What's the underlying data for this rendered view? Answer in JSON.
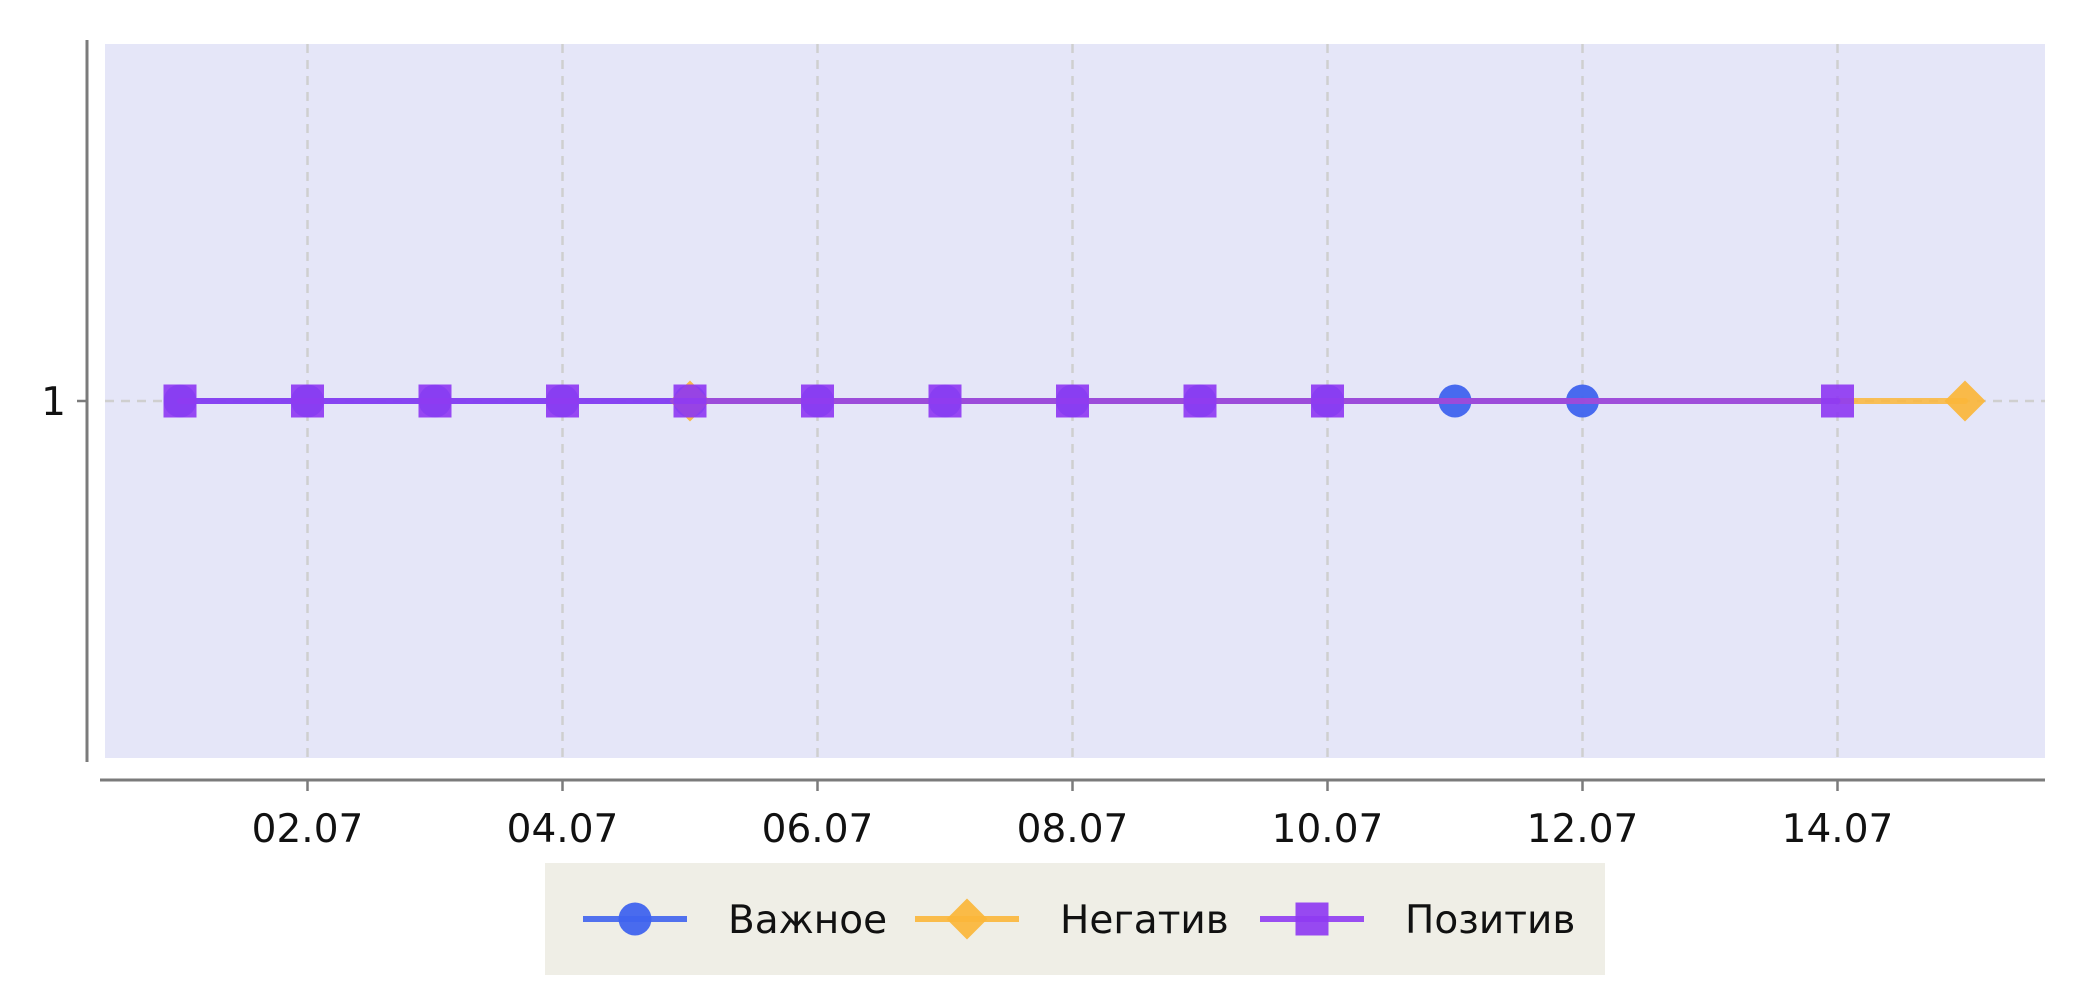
{
  "chart_data": {
    "type": "line",
    "title": "",
    "xlabel": "",
    "ylabel": "",
    "x_tick_labels": [
      "02.07",
      "04.07",
      "06.07",
      "08.07",
      "10.07",
      "12.07",
      "14.07"
    ],
    "y_tick_labels": [
      "1"
    ],
    "ylim": [
      0,
      2
    ],
    "grid": true,
    "legend_position": "bottom-center",
    "background_color": "#E5E6F8",
    "legend_background_color": "#EFEEE6",
    "series": [
      {
        "name": "Важное",
        "color": "#3F63EE",
        "marker": "circle",
        "x": [
          "01.07",
          "02.07",
          "03.07",
          "04.07",
          "05.07",
          "06.07",
          "07.07",
          "08.07",
          "09.07",
          "10.07",
          "11.07",
          "12.07"
        ],
        "y": [
          1,
          1,
          1,
          1,
          1,
          1,
          1,
          1,
          1,
          1,
          1,
          1
        ]
      },
      {
        "name": "Негатив",
        "color": "#FBB63A",
        "marker": "diamond",
        "x": [
          "05.07",
          "15.07"
        ],
        "y": [
          1,
          1
        ]
      },
      {
        "name": "Позитив",
        "color": "#8F3BF2",
        "marker": "square",
        "x": [
          "01.07",
          "02.07",
          "03.07",
          "04.07",
          "05.07",
          "06.07",
          "07.07",
          "08.07",
          "09.07",
          "10.07",
          "14.07"
        ],
        "y": [
          1,
          1,
          1,
          1,
          1,
          1,
          1,
          1,
          1,
          1,
          1
        ]
      }
    ]
  }
}
